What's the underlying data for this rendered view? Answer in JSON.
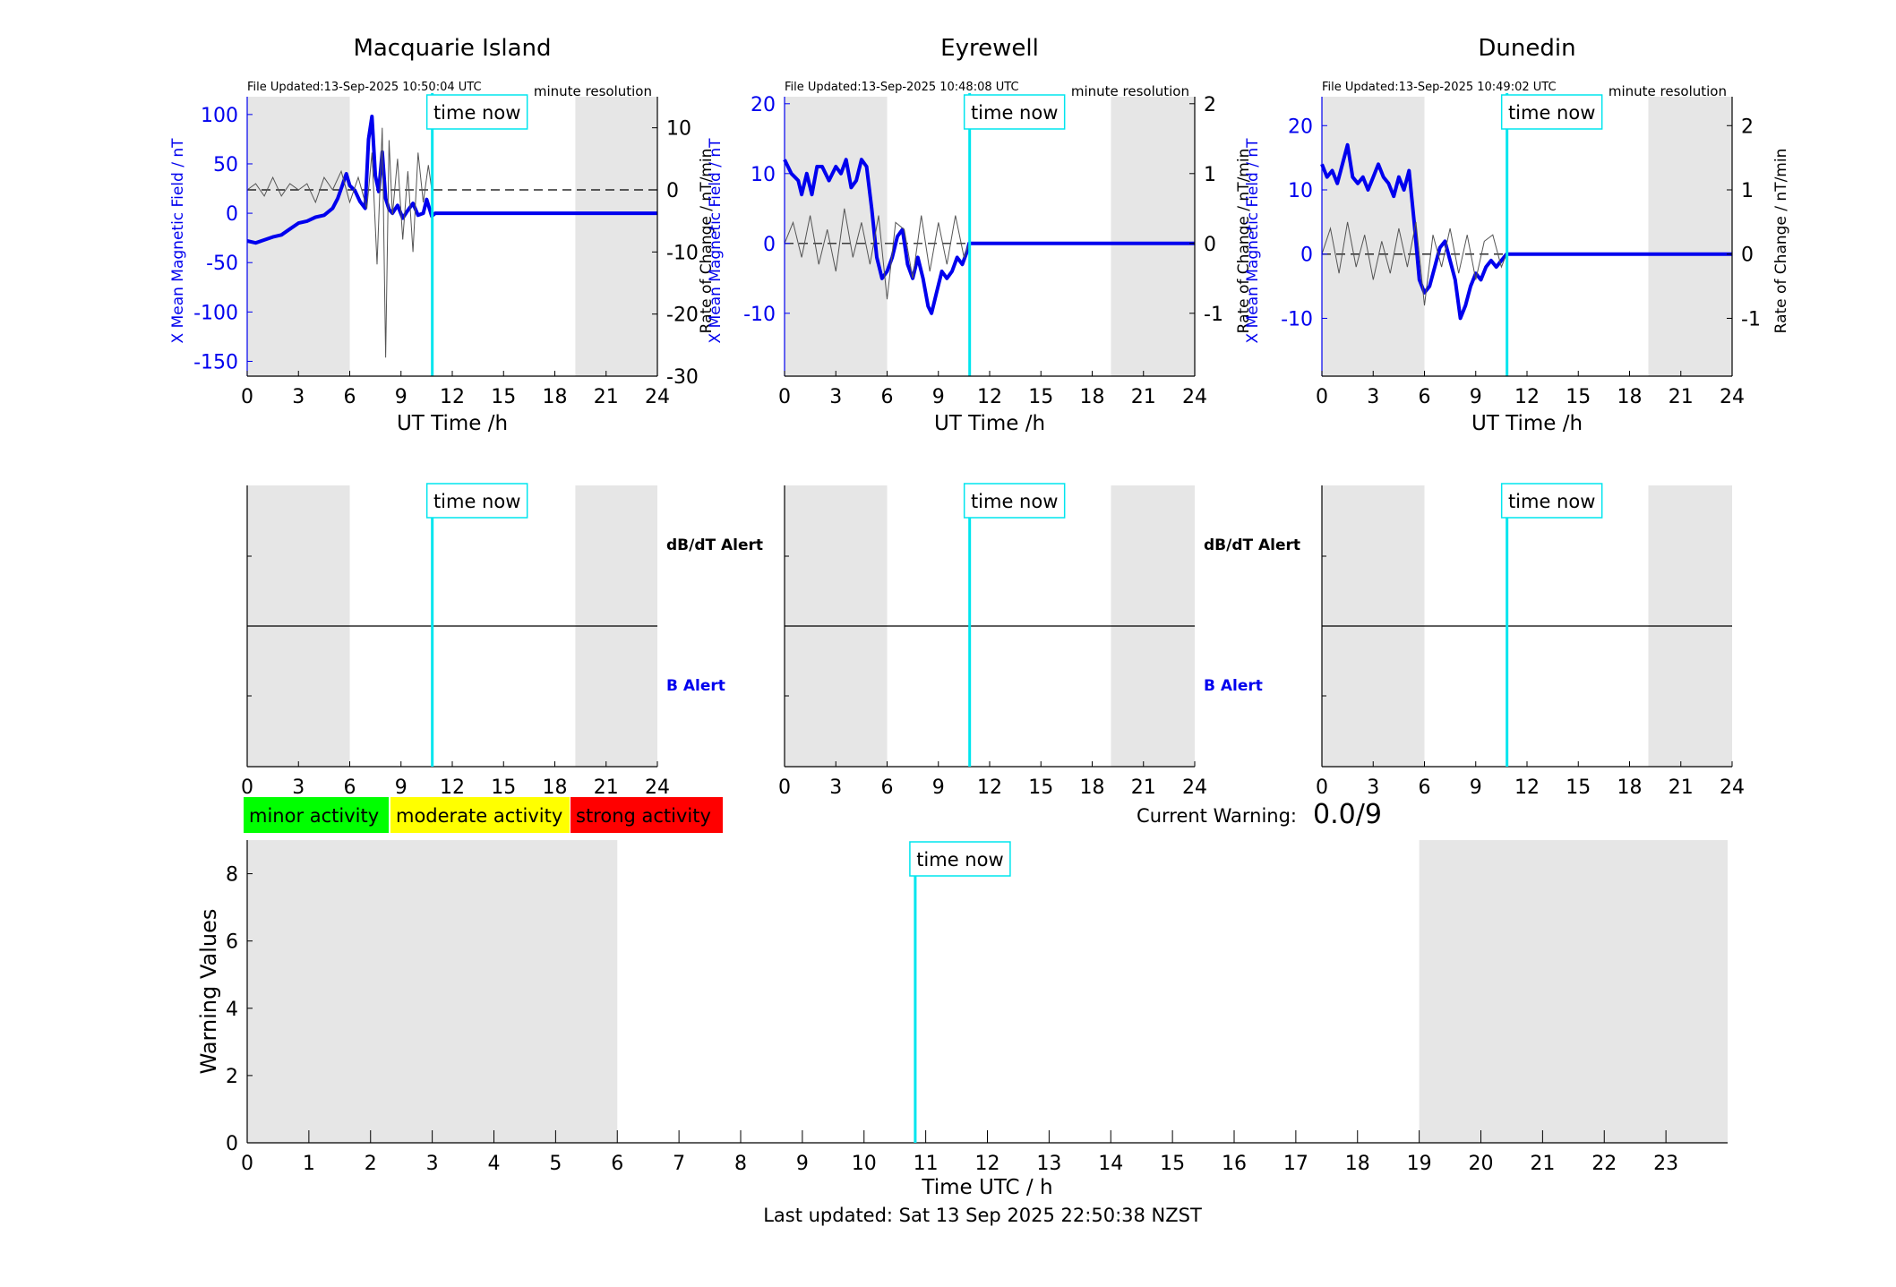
{
  "window": {
    "title": "Geomagnetic activity warnings"
  },
  "x_tick_labels": [
    "0",
    "3",
    "6",
    "9",
    "12",
    "15",
    "18",
    "21",
    "24"
  ],
  "time_now_label": "time now",
  "minute_resolution_label": "minute resolution",
  "left_axis_label": "X Mean Magnetic Field / nT",
  "right_axis_label": "Rate of Change / nT/min",
  "x_axis_label": "UT Time /h",
  "alert_labels": {
    "dbdt": "dB/dT Alert",
    "b": "B Alert"
  },
  "legend": [
    {
      "label": "minor activity",
      "color": "#00ff00"
    },
    {
      "label": "moderate activity",
      "color": "#ffff00"
    },
    {
      "label": "strong activity",
      "color": "#ff0000"
    }
  ],
  "current_warning": {
    "label": "Current Warning:",
    "value": "0.0/9"
  },
  "footer": {
    "last_updated": "Last updated: Sat 13 Sep 2025 22:50:38 NZST"
  },
  "colors": {
    "field": "#0000ee",
    "rate": "#555555",
    "time_now": "#00e5ee",
    "night_shade": "#e6e6e6"
  },
  "chart_data": [
    {
      "type": "line",
      "title": "Macquarie Island",
      "file_updated": "File Updated:13-Sep-2025 10:50:04 UTC",
      "xlim": [
        0,
        24
      ],
      "ylim_left": [
        -165,
        118
      ],
      "ylim_right": [
        -30,
        15
      ],
      "left_ticks": [
        -150,
        -100,
        -50,
        0,
        50,
        100
      ],
      "left_tick_labels": [
        "-150",
        "-100",
        "-50",
        "0",
        "50",
        "100"
      ],
      "right_ticks": [
        -30,
        -20,
        -10,
        0,
        10
      ],
      "right_tick_labels": [
        "-30",
        "-20",
        "-10",
        "0",
        "10"
      ],
      "night_shading_hours": [
        [
          0,
          6
        ],
        [
          19.2,
          24
        ]
      ],
      "time_now_h": 10.83,
      "series": [
        {
          "axis": "left",
          "x": [
            0,
            0.5,
            1,
            1.5,
            2,
            2.5,
            3,
            3.5,
            4,
            4.5,
            5,
            5.3,
            5.5,
            5.8,
            6,
            6.3,
            6.6,
            6.9,
            7.1,
            7.3,
            7.5,
            7.7,
            7.9,
            8.1,
            8.3,
            8.5,
            8.8,
            9.1,
            9.4,
            9.7,
            10,
            10.3,
            10.5,
            10.8,
            11,
            12,
            14,
            16,
            18,
            20,
            22,
            24
          ],
          "y": [
            -28,
            -30,
            -27,
            -24,
            -22,
            -16,
            -10,
            -8,
            -4,
            -2,
            5,
            15,
            25,
            40,
            28,
            23,
            12,
            5,
            75,
            98,
            38,
            22,
            62,
            15,
            4,
            0,
            8,
            -5,
            3,
            10,
            -2,
            0,
            14,
            -3,
            0,
            0,
            0,
            0,
            0,
            0,
            0,
            0
          ]
        },
        {
          "axis": "right",
          "x": [
            0,
            0.5,
            1,
            1.5,
            2,
            2.5,
            3,
            3.5,
            4,
            4.5,
            5,
            5.5,
            6,
            6.5,
            7,
            7.3,
            7.6,
            7.9,
            8.1,
            8.3,
            8.5,
            8.8,
            9.1,
            9.4,
            9.7,
            10,
            10.3,
            10.6,
            10.8
          ],
          "y": [
            0,
            1,
            -1,
            2,
            -1,
            1,
            0,
            1,
            -2,
            2,
            0,
            3,
            -2,
            2,
            -3,
            6,
            -12,
            10,
            -27,
            8,
            -4,
            5,
            -8,
            3,
            -10,
            6,
            -2,
            4,
            0
          ]
        }
      ],
      "alert_x_ticks": [
        0,
        3,
        6,
        9,
        12,
        15,
        18,
        21,
        24
      ]
    },
    {
      "type": "line",
      "title": "Eyrewell",
      "file_updated": "File Updated:13-Sep-2025 10:48:08 UTC",
      "xlim": [
        0,
        24
      ],
      "ylim_left": [
        -19,
        21
      ],
      "ylim_right": [
        -1.9,
        2.1
      ],
      "left_ticks": [
        -10,
        0,
        10,
        20
      ],
      "left_tick_labels": [
        "-10",
        "0",
        "10",
        "20"
      ],
      "right_ticks": [
        -1,
        0,
        1,
        2
      ],
      "right_tick_labels": [
        "-1",
        "0",
        "1",
        "2"
      ],
      "night_shading_hours": [
        [
          0,
          6
        ],
        [
          19.1,
          24
        ]
      ],
      "time_now_h": 10.83,
      "series": [
        {
          "axis": "left",
          "x": [
            0,
            0.4,
            0.8,
            1,
            1.3,
            1.6,
            1.9,
            2.2,
            2.6,
            3,
            3.3,
            3.6,
            3.9,
            4.2,
            4.5,
            4.8,
            5.1,
            5.4,
            5.7,
            6,
            6.3,
            6.6,
            6.9,
            7.2,
            7.5,
            7.8,
            8.1,
            8.4,
            8.6,
            8.9,
            9.2,
            9.5,
            9.8,
            10.1,
            10.4,
            10.7,
            10.8,
            12,
            14,
            16,
            18,
            20,
            22,
            24
          ],
          "y": [
            12,
            10,
            9,
            7,
            10,
            7,
            11,
            11,
            9,
            11,
            10,
            12,
            8,
            9,
            12,
            11,
            5,
            -2,
            -5,
            -4,
            -2,
            1,
            2,
            -3,
            -5,
            -2,
            -5,
            -9,
            -10,
            -7,
            -4,
            -5,
            -4,
            -2,
            -3,
            -1,
            0,
            0,
            0,
            0,
            0,
            0,
            0,
            0
          ]
        },
        {
          "axis": "right",
          "x": [
            0,
            0.5,
            1,
            1.5,
            2,
            2.5,
            3,
            3.5,
            4,
            4.5,
            5,
            5.5,
            6,
            6.5,
            7,
            7.5,
            8,
            8.5,
            9,
            9.5,
            10,
            10.5,
            10.8
          ],
          "y": [
            0,
            0.3,
            -0.2,
            0.4,
            -0.3,
            0.2,
            -0.4,
            0.5,
            -0.2,
            0.3,
            -0.3,
            0.4,
            -0.8,
            0.3,
            0.2,
            -0.5,
            0.4,
            -0.4,
            0.3,
            -0.3,
            0.4,
            -0.2,
            0
          ]
        }
      ],
      "alert_x_ticks": [
        0,
        3,
        6,
        9,
        12,
        15,
        18,
        21,
        24
      ]
    },
    {
      "type": "line",
      "title": "Dunedin",
      "file_updated": "File Updated:13-Sep-2025 10:49:02 UTC",
      "xlim": [
        0,
        24
      ],
      "ylim_left": [
        -19,
        24.5
      ],
      "ylim_right": [
        -1.9,
        2.45
      ],
      "left_ticks": [
        -10,
        0,
        10,
        20
      ],
      "left_tick_labels": [
        "-10",
        "0",
        "10",
        "20"
      ],
      "right_ticks": [
        -1,
        0,
        1,
        2
      ],
      "right_tick_labels": [
        "-1",
        "0",
        "1",
        "2"
      ],
      "night_shading_hours": [
        [
          0,
          6
        ],
        [
          19.1,
          24
        ]
      ],
      "time_now_h": 10.83,
      "series": [
        {
          "axis": "left",
          "x": [
            0,
            0.3,
            0.6,
            0.9,
            1.2,
            1.5,
            1.8,
            2.1,
            2.4,
            2.7,
            3,
            3.3,
            3.6,
            3.9,
            4.2,
            4.5,
            4.8,
            5.1,
            5.4,
            5.7,
            6,
            6.3,
            6.6,
            6.9,
            7.2,
            7.5,
            7.8,
            8.1,
            8.4,
            8.7,
            9,
            9.3,
            9.6,
            9.9,
            10.2,
            10.5,
            10.8,
            12,
            14,
            16,
            18,
            20,
            22,
            24
          ],
          "y": [
            14,
            12,
            13,
            11,
            14,
            17,
            12,
            11,
            12,
            10,
            12,
            14,
            12,
            11,
            9,
            12,
            10,
            13,
            5,
            -4,
            -6,
            -5,
            -2,
            1,
            2,
            -1,
            -4,
            -10,
            -8,
            -5,
            -3,
            -4,
            -2,
            -1,
            -2,
            -1,
            0,
            0,
            0,
            0,
            0,
            0,
            0,
            0
          ]
        },
        {
          "axis": "right",
          "x": [
            0,
            0.5,
            1,
            1.5,
            2,
            2.5,
            3,
            3.5,
            4,
            4.5,
            5,
            5.5,
            6,
            6.5,
            7,
            7.5,
            8,
            8.5,
            9,
            9.5,
            10,
            10.5,
            10.8
          ],
          "y": [
            0,
            0.4,
            -0.3,
            0.5,
            -0.2,
            0.3,
            -0.4,
            0.2,
            -0.3,
            0.4,
            -0.2,
            0.5,
            -0.8,
            0.3,
            -0.2,
            0.4,
            -0.3,
            0.3,
            -0.4,
            0.2,
            0.3,
            -0.2,
            0
          ]
        }
      ],
      "alert_x_ticks": [
        0,
        3,
        6,
        9,
        12,
        15,
        18,
        21,
        24
      ]
    },
    {
      "type": "line",
      "title": "",
      "xlabel": "Time UTC / h",
      "ylabel": "Warning Values",
      "xlim": [
        0,
        24
      ],
      "ylim": [
        0,
        9
      ],
      "x_ticks": [
        0,
        1,
        2,
        3,
        4,
        5,
        6,
        7,
        8,
        9,
        10,
        11,
        12,
        13,
        14,
        15,
        16,
        17,
        18,
        19,
        20,
        21,
        22,
        23
      ],
      "x_tick_labels": [
        "0",
        "1",
        "2",
        "3",
        "4",
        "5",
        "6",
        "7",
        "8",
        "9",
        "10",
        "11",
        "12",
        "13",
        "14",
        "15",
        "16",
        "17",
        "18",
        "19",
        "20",
        "21",
        "22",
        "23"
      ],
      "y_ticks": [
        0,
        2,
        4,
        6,
        8
      ],
      "y_tick_labels": [
        "0",
        "2",
        "4",
        "6",
        "8"
      ],
      "night_shading_hours": [
        [
          0,
          6
        ],
        [
          19,
          24
        ]
      ],
      "time_now_h": 10.83,
      "series": []
    }
  ]
}
